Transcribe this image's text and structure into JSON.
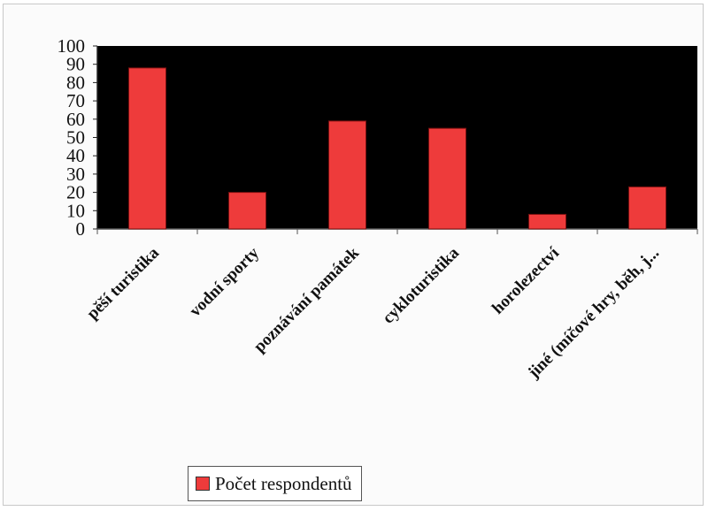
{
  "colors": {
    "plot_background": "#000000",
    "bar": "#ee3b3b",
    "bar_stroke": "#7a1010"
  },
  "chart_data": {
    "type": "bar",
    "title": "",
    "xlabel": "",
    "ylabel": "",
    "categories": [
      "pěší turistika",
      "vodní sporty",
      "poznávání památek",
      "cykloturistika",
      "horolezectví",
      "jiné (míčové hry, běh, j..."
    ],
    "series": [
      {
        "name": "Počet respondentů",
        "values": [
          88,
          20,
          59,
          55,
          8,
          23
        ]
      }
    ],
    "ylim": [
      0,
      100
    ],
    "yticks": [
      0,
      10,
      20,
      30,
      40,
      50,
      60,
      70,
      80,
      90,
      100
    ],
    "grid": false,
    "legend": "bottom"
  }
}
